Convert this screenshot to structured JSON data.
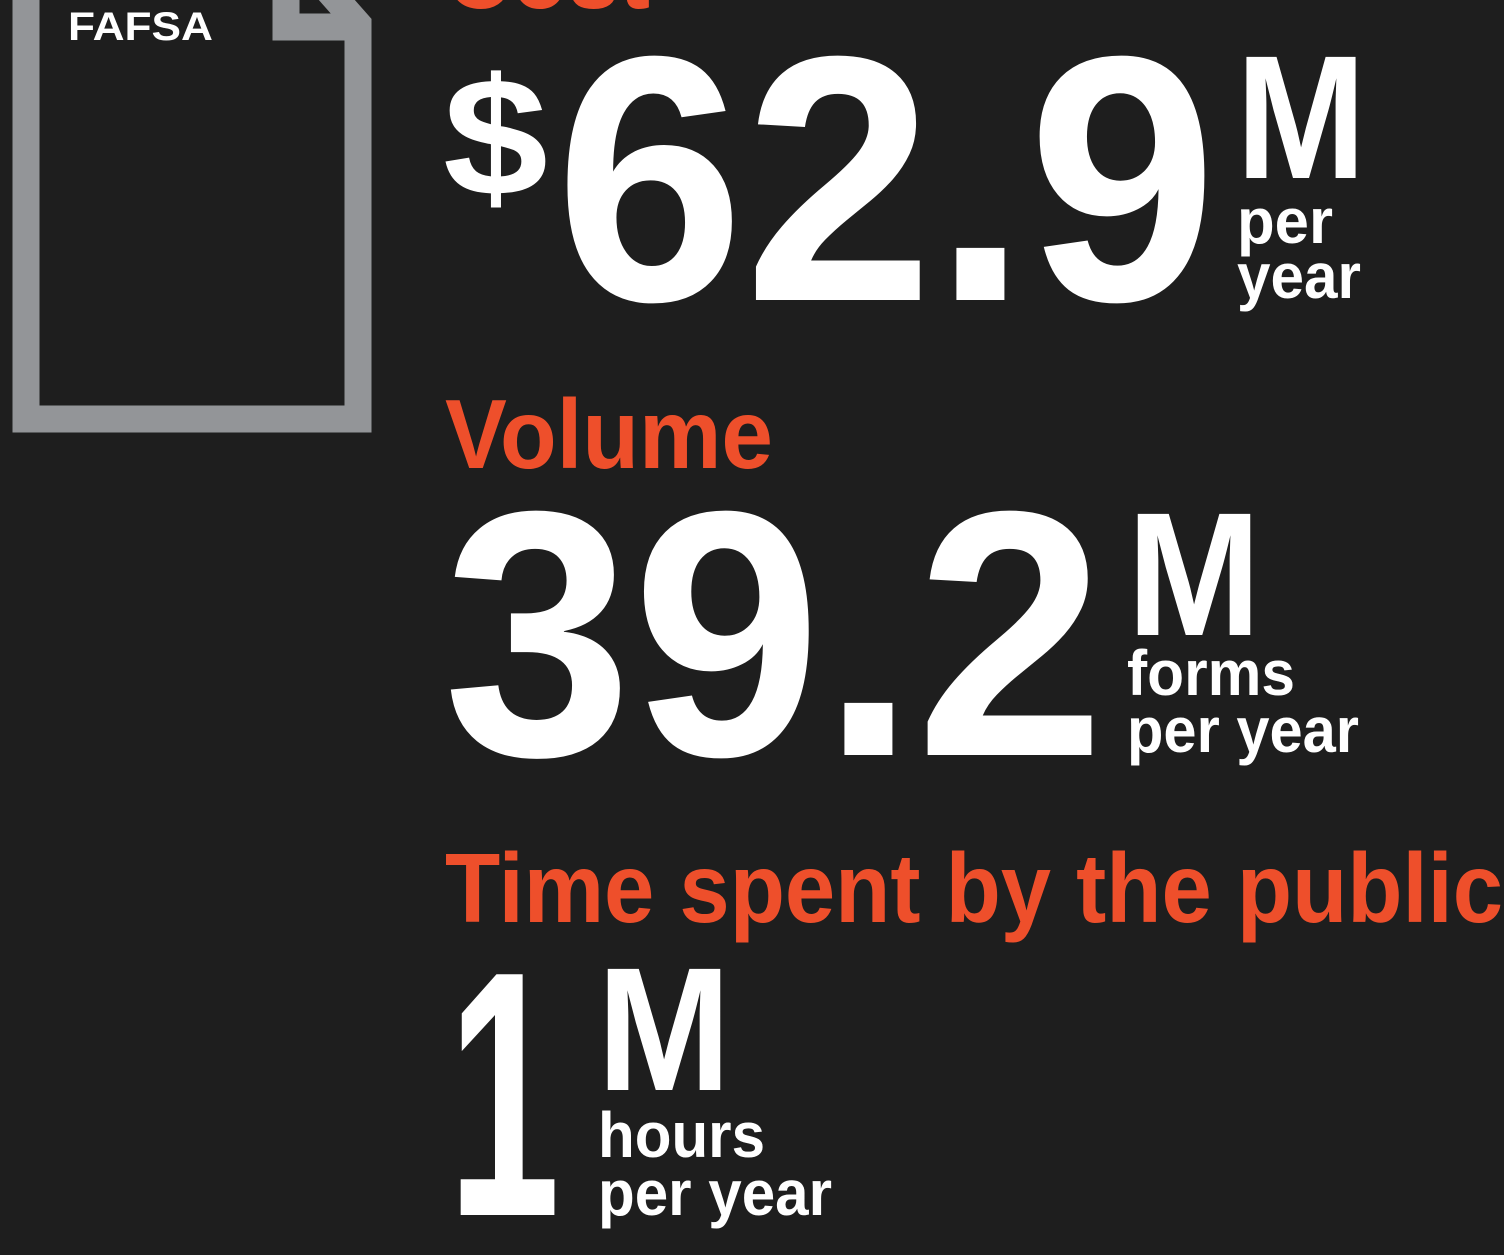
{
  "icon": {
    "label": "FAFSA"
  },
  "stats": [
    {
      "heading": "Cost",
      "prefix": "$",
      "value": 62.9,
      "unit": "M",
      "note_lines": [
        "per",
        "year"
      ]
    },
    {
      "heading": "Volume",
      "value": 39.2,
      "unit": "M",
      "note_lines": [
        "forms",
        "per year"
      ]
    },
    {
      "heading": "Time spent by the public",
      "value": 1,
      "unit": "M",
      "note_lines": [
        "hours",
        "per year"
      ]
    }
  ]
}
